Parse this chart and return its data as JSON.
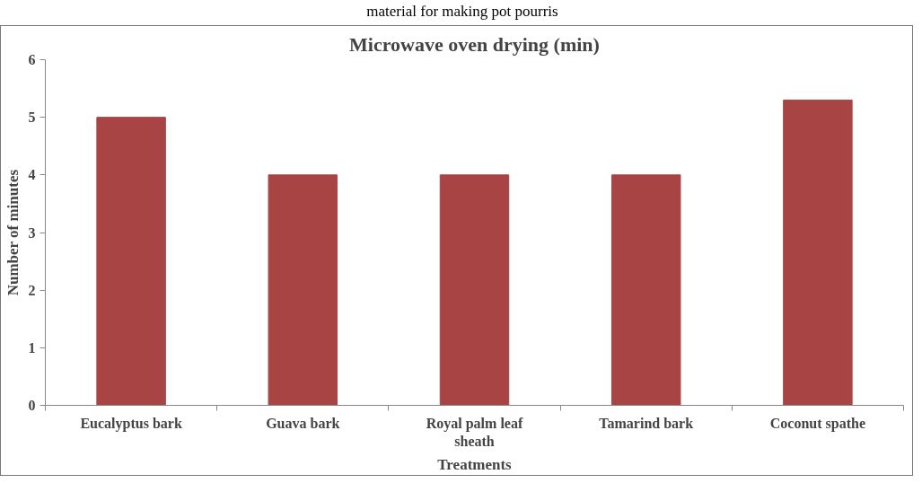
{
  "chart_data": {
    "type": "bar",
    "title": "Microwave oven drying (min)",
    "annotations": [
      "material for making pot pourris"
    ],
    "xlabel": "Treatments",
    "ylabel": "Number of minutes",
    "categories": [
      "Eucalyptus bark",
      "Guava bark",
      "Royal palm leaf sheath",
      "Tamarind bark",
      "Coconut spathe"
    ],
    "values": [
      5,
      4,
      4,
      4,
      5.3
    ],
    "color": "#a84444",
    "ylim": [
      0,
      6
    ],
    "yticks": [
      0,
      1,
      2,
      3,
      4,
      5,
      6
    ],
    "grid": false
  }
}
